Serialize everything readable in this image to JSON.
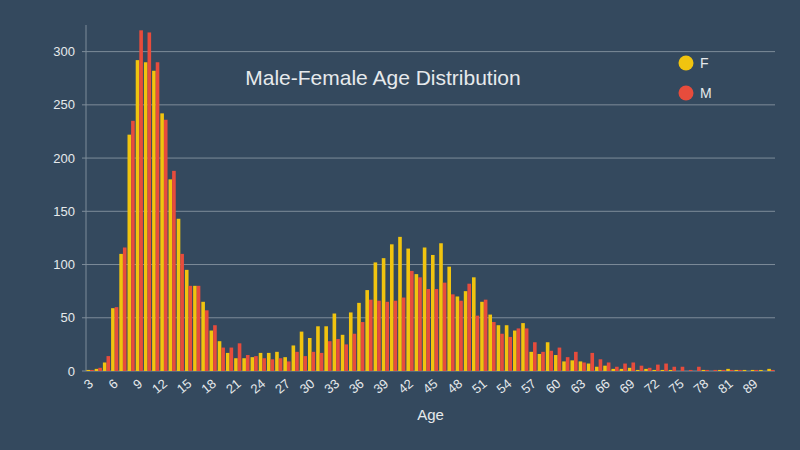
{
  "chart_data": {
    "type": "bar",
    "title": "Male-Female Age Distribution",
    "x_label": "Age",
    "categories": [
      3,
      null,
      null,
      6,
      null,
      null,
      9,
      null,
      null,
      12,
      null,
      null,
      15,
      null,
      null,
      18,
      null,
      null,
      21,
      null,
      null,
      24,
      null,
      null,
      27,
      null,
      null,
      30,
      null,
      null,
      33,
      null,
      null,
      36,
      null,
      null,
      39,
      null,
      null,
      42,
      null,
      null,
      45,
      null,
      null,
      48,
      null,
      null,
      51,
      null,
      null,
      54,
      null,
      null,
      57,
      null,
      null,
      60,
      null,
      null,
      63,
      null,
      null,
      66,
      null,
      null,
      69,
      null,
      null,
      72,
      null,
      null,
      75,
      null,
      null,
      78,
      null,
      null,
      81,
      null,
      null,
      89,
      null,
      null
    ],
    "series": [
      {
        "name": "F",
        "color": "#f1c40f",
        "values": [
          1,
          2,
          8,
          59,
          110,
          222,
          292,
          290,
          282,
          242,
          180,
          143,
          95,
          80,
          65,
          38,
          28,
          17,
          12,
          12,
          13,
          17,
          17,
          18,
          13,
          24,
          37,
          31,
          42,
          42,
          54,
          34,
          55,
          64,
          76,
          102,
          106,
          119,
          126,
          115,
          91,
          116,
          109,
          120,
          98,
          70,
          75,
          88,
          65,
          53,
          43,
          43,
          38,
          45,
          18,
          16,
          27,
          15,
          9,
          10,
          9,
          7,
          4,
          5,
          2,
          2,
          3,
          1,
          2,
          1,
          1,
          1,
          0,
          0,
          0,
          1,
          0,
          1,
          2,
          1,
          1,
          1,
          1,
          2
        ]
      },
      {
        "name": "M",
        "color": "#e74c3c",
        "values": [
          1,
          3,
          14,
          60,
          116,
          235,
          320,
          318,
          290,
          236,
          188,
          110,
          80,
          80,
          57,
          43,
          22,
          22,
          26,
          15,
          14,
          12,
          11,
          12,
          9,
          18,
          14,
          18,
          17,
          28,
          30,
          25,
          35,
          46,
          67,
          66,
          65,
          66,
          69,
          94,
          88,
          77,
          77,
          83,
          72,
          66,
          82,
          52,
          67,
          46,
          35,
          32,
          40,
          40,
          27,
          18,
          19,
          22,
          13,
          18,
          8,
          17,
          11,
          8,
          4,
          7,
          8,
          5,
          3,
          6,
          7,
          4,
          4,
          1,
          4,
          1,
          1,
          1,
          1,
          1,
          0,
          1,
          0,
          1
        ]
      }
    ],
    "ylim": [
      0,
      325
    ],
    "yticks": [
      0,
      50,
      100,
      150,
      200,
      250,
      300
    ],
    "grid": true,
    "legend": "top-right"
  }
}
